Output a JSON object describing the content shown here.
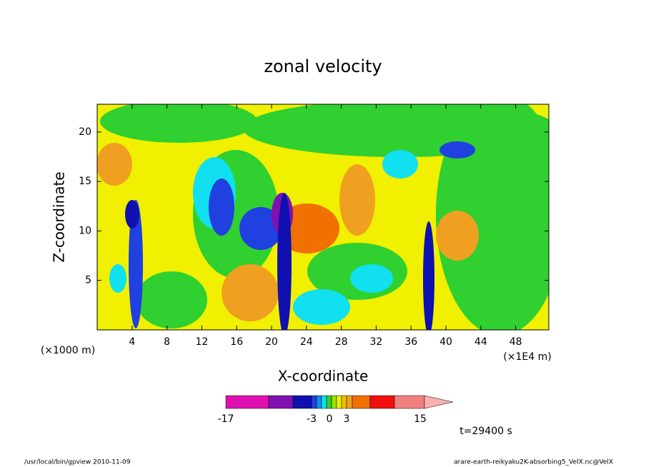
{
  "chart_data": {
    "type": "contour",
    "title": "zonal velocity",
    "x_label": "X-coordinate",
    "y_label": "Z-coordinate",
    "x_unit_left": "(×1000 m)",
    "x_unit_right": "(×1E4 m)",
    "xlim": [
      0,
      51.8
    ],
    "ylim": [
      0,
      22.8
    ],
    "xticks": [
      4,
      8,
      12,
      16,
      20,
      24,
      28,
      32,
      36,
      40,
      44,
      48
    ],
    "yticks": [
      5,
      10,
      15,
      20
    ],
    "colorbar": {
      "ticks": [
        -17,
        -3,
        0,
        3,
        15
      ],
      "colors": [
        "#e010b0",
        "#8010b0",
        "#1010b0",
        "#2040e0",
        "#1090f0",
        "#10e0f0",
        "#30d030",
        "#a0e000",
        "#f0f000",
        "#f0c000",
        "#f0a020",
        "#f07000",
        "#f01010",
        "#f08080",
        "#f8b0b0"
      ]
    },
    "time_label": "t=29400 s",
    "footer_left": "/usr/local/bin/gpview  2010-11-09",
    "footer_right": "arare-earth-reikyaku2K-absorbing5_VelX.nc@VelX"
  }
}
